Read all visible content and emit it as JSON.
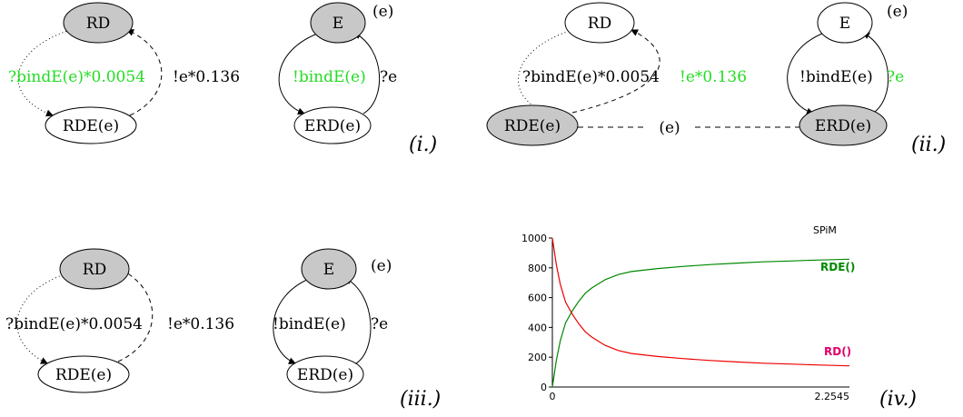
{
  "colors": {
    "highlight": "#22dd22",
    "node_fill_active": "#c8c8c8",
    "node_fill_inactive": "#ffffff",
    "series_rde": "#008800",
    "series_rd": "#ee0000",
    "series_rd_label": "#e0006a"
  },
  "panels": {
    "i": {
      "tag": "(i.)",
      "rd": "RD",
      "rde": "RDE(e)",
      "rd_edge": "?bindE(e)*0.0054",
      "rde_edge": "!e*0.136",
      "e_tag": "(e)",
      "e": "E",
      "erd": "ERD(e)",
      "e_edge": "!bindE(e)",
      "erd_edge": "?e"
    },
    "ii": {
      "tag": "(ii.)",
      "rd": "RD",
      "rde": "RDE(e)",
      "rd_edge": "?bindE(e)*0.0054",
      "rde_edge": "!e*0.136",
      "e_tag": "(e)",
      "e": "E",
      "erd": "ERD(e)",
      "e_edge": "!bindE(e)",
      "erd_edge": "?e",
      "link": "(e)"
    },
    "iii": {
      "tag": "(iii.)",
      "rd": "RD",
      "rde": "RDE(e)",
      "rd_edge": "?bindE(e)*0.0054",
      "rde_edge": "!e*0.136",
      "e_tag": "(e)",
      "e": "E",
      "erd": "ERD(e)",
      "e_edge": "!bindE(e)",
      "erd_edge": "?e"
    },
    "iv": {
      "tag": "(iv.)"
    }
  },
  "chart_data": {
    "type": "line",
    "title": "SPiM",
    "xlim": [
      0,
      2.2545
    ],
    "ylim": [
      0,
      1000
    ],
    "x_ticks": [
      "0",
      "2.2545"
    ],
    "y_ticks": [
      "0",
      "200",
      "400",
      "600",
      "800",
      "1000"
    ],
    "grid": false,
    "series": [
      {
        "name": "RDE()",
        "x": [
          0,
          0.03,
          0.06,
          0.1,
          0.15,
          0.2,
          0.25,
          0.3,
          0.4,
          0.5,
          0.6,
          0.8,
          1.0,
          1.2,
          1.4,
          1.6,
          1.8,
          2.0,
          2.2545
        ],
        "y": [
          0,
          180,
          310,
          430,
          510,
          575,
          630,
          665,
          720,
          755,
          775,
          795,
          810,
          822,
          832,
          840,
          846,
          852,
          858
        ]
      },
      {
        "name": "RD()",
        "x": [
          0,
          0.03,
          0.06,
          0.1,
          0.15,
          0.2,
          0.25,
          0.3,
          0.4,
          0.5,
          0.6,
          0.8,
          1.0,
          1.2,
          1.4,
          1.6,
          1.8,
          2.0,
          2.2545
        ],
        "y": [
          1000,
          820,
          690,
          570,
          490,
          425,
          370,
          335,
          280,
          245,
          225,
          205,
          190,
          178,
          168,
          160,
          154,
          148,
          142
        ]
      }
    ]
  }
}
